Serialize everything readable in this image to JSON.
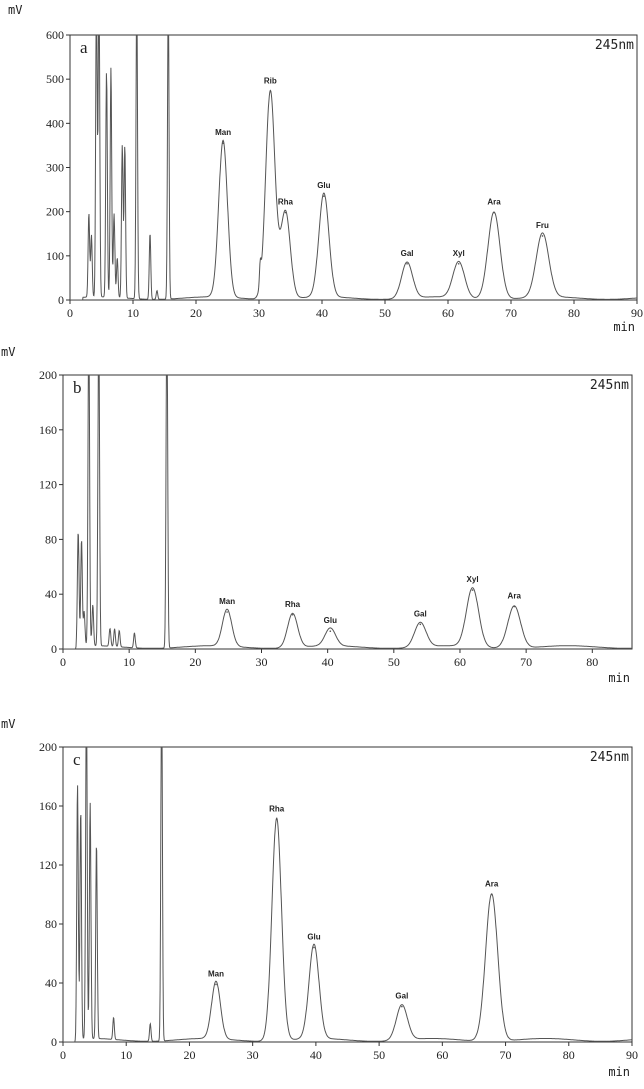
{
  "chart_data": [
    {
      "type": "line",
      "panel": "a",
      "wavelength": "245nm",
      "ylabel": "mV",
      "xlabel": "min",
      "xlim": [
        0,
        90
      ],
      "ylim": [
        0,
        600
      ],
      "xticks": [
        0,
        10,
        20,
        30,
        40,
        50,
        60,
        70,
        80,
        90
      ],
      "yticks": [
        0,
        100,
        200,
        300,
        400,
        500,
        600
      ],
      "grid": false,
      "peaks": [
        {
          "label": "Man",
          "x": 24.3,
          "y": 355
        },
        {
          "label": "Rib",
          "x": 31.8,
          "y": 472
        },
        {
          "label": "Rha",
          "x": 34.2,
          "y": 198
        },
        {
          "label": "Glu",
          "x": 40.3,
          "y": 235
        },
        {
          "label": "Gal",
          "x": 53.5,
          "y": 82
        },
        {
          "label": "Xyl",
          "x": 61.7,
          "y": 82
        },
        {
          "label": "Ara",
          "x": 67.3,
          "y": 198
        },
        {
          "label": "Fru",
          "x": 75.0,
          "y": 145
        }
      ],
      "solvent_peaks": [
        {
          "x": 3.0,
          "y": 190
        },
        {
          "x": 3.4,
          "y": 140
        },
        {
          "x": 4.2,
          "y": 700
        },
        {
          "x": 4.6,
          "y": 700
        },
        {
          "x": 5.8,
          "y": 510
        },
        {
          "x": 6.5,
          "y": 520
        },
        {
          "x": 7.0,
          "y": 190
        },
        {
          "x": 7.5,
          "y": 90
        },
        {
          "x": 8.3,
          "y": 345
        },
        {
          "x": 8.7,
          "y": 345
        },
        {
          "x": 10.6,
          "y": 700
        },
        {
          "x": 12.7,
          "y": 150
        },
        {
          "x": 13.8,
          "y": 20
        },
        {
          "x": 15.6,
          "y": 700
        },
        {
          "x": 30.2,
          "y": 45
        }
      ]
    },
    {
      "type": "line",
      "panel": "b",
      "wavelength": "245nm",
      "ylabel": "mV",
      "xlabel": "min",
      "xlim": [
        0,
        86
      ],
      "ylim": [
        0,
        200
      ],
      "xticks": [
        0,
        10,
        20,
        30,
        40,
        50,
        60,
        70,
        80
      ],
      "yticks": [
        0,
        40,
        80,
        120,
        160,
        200
      ],
      "grid": false,
      "peaks": [
        {
          "label": "Man",
          "x": 24.8,
          "y": 27
        },
        {
          "label": "Rha",
          "x": 34.7,
          "y": 25
        },
        {
          "label": "Glu",
          "x": 40.4,
          "y": 13
        },
        {
          "label": "Gal",
          "x": 54.0,
          "y": 18
        },
        {
          "label": "Xyl",
          "x": 61.9,
          "y": 43
        },
        {
          "label": "Ara",
          "x": 68.2,
          "y": 31
        }
      ],
      "solvent_peaks": [
        {
          "x": 2.3,
          "y": 84
        },
        {
          "x": 2.8,
          "y": 78
        },
        {
          "x": 3.2,
          "y": 25
        },
        {
          "x": 3.9,
          "y": 240
        },
        {
          "x": 4.5,
          "y": 30
        },
        {
          "x": 5.4,
          "y": 240
        },
        {
          "x": 7.1,
          "y": 13
        },
        {
          "x": 7.8,
          "y": 13
        },
        {
          "x": 8.5,
          "y": 12
        },
        {
          "x": 10.8,
          "y": 11
        },
        {
          "x": 15.7,
          "y": 240
        }
      ]
    },
    {
      "type": "line",
      "panel": "c",
      "wavelength": "245nm",
      "ylabel": "mV",
      "xlabel": "min",
      "xlim": [
        0,
        90
      ],
      "ylim": [
        0,
        200
      ],
      "xticks": [
        0,
        10,
        20,
        30,
        40,
        50,
        60,
        70,
        80,
        90
      ],
      "yticks": [
        0,
        40,
        80,
        120,
        160,
        200
      ],
      "grid": false,
      "peaks": [
        {
          "label": "Man",
          "x": 24.2,
          "y": 39
        },
        {
          "label": "Rha",
          "x": 33.8,
          "y": 151
        },
        {
          "label": "Glu",
          "x": 39.7,
          "y": 64
        },
        {
          "label": "Gal",
          "x": 53.6,
          "y": 24
        },
        {
          "label": "Ara",
          "x": 67.8,
          "y": 100
        }
      ],
      "solvent_peaks": [
        {
          "x": 2.3,
          "y": 173
        },
        {
          "x": 2.8,
          "y": 156
        },
        {
          "x": 3.7,
          "y": 240
        },
        {
          "x": 4.3,
          "y": 160
        },
        {
          "x": 5.3,
          "y": 133
        },
        {
          "x": 8.0,
          "y": 15
        },
        {
          "x": 13.8,
          "y": 12
        },
        {
          "x": 15.6,
          "y": 240
        }
      ]
    }
  ]
}
